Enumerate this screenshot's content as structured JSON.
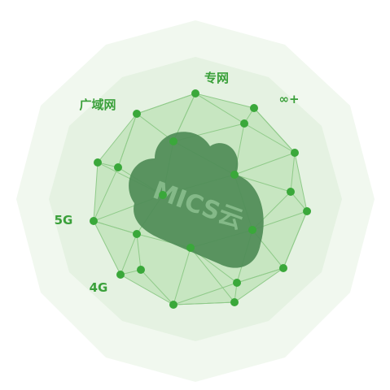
{
  "labels": {
    "private_network": "专网",
    "infinity": "∞+",
    "wan": "广域网",
    "five_g": "5G",
    "four_g": "4G"
  },
  "cloud_label": "MICS云"
}
